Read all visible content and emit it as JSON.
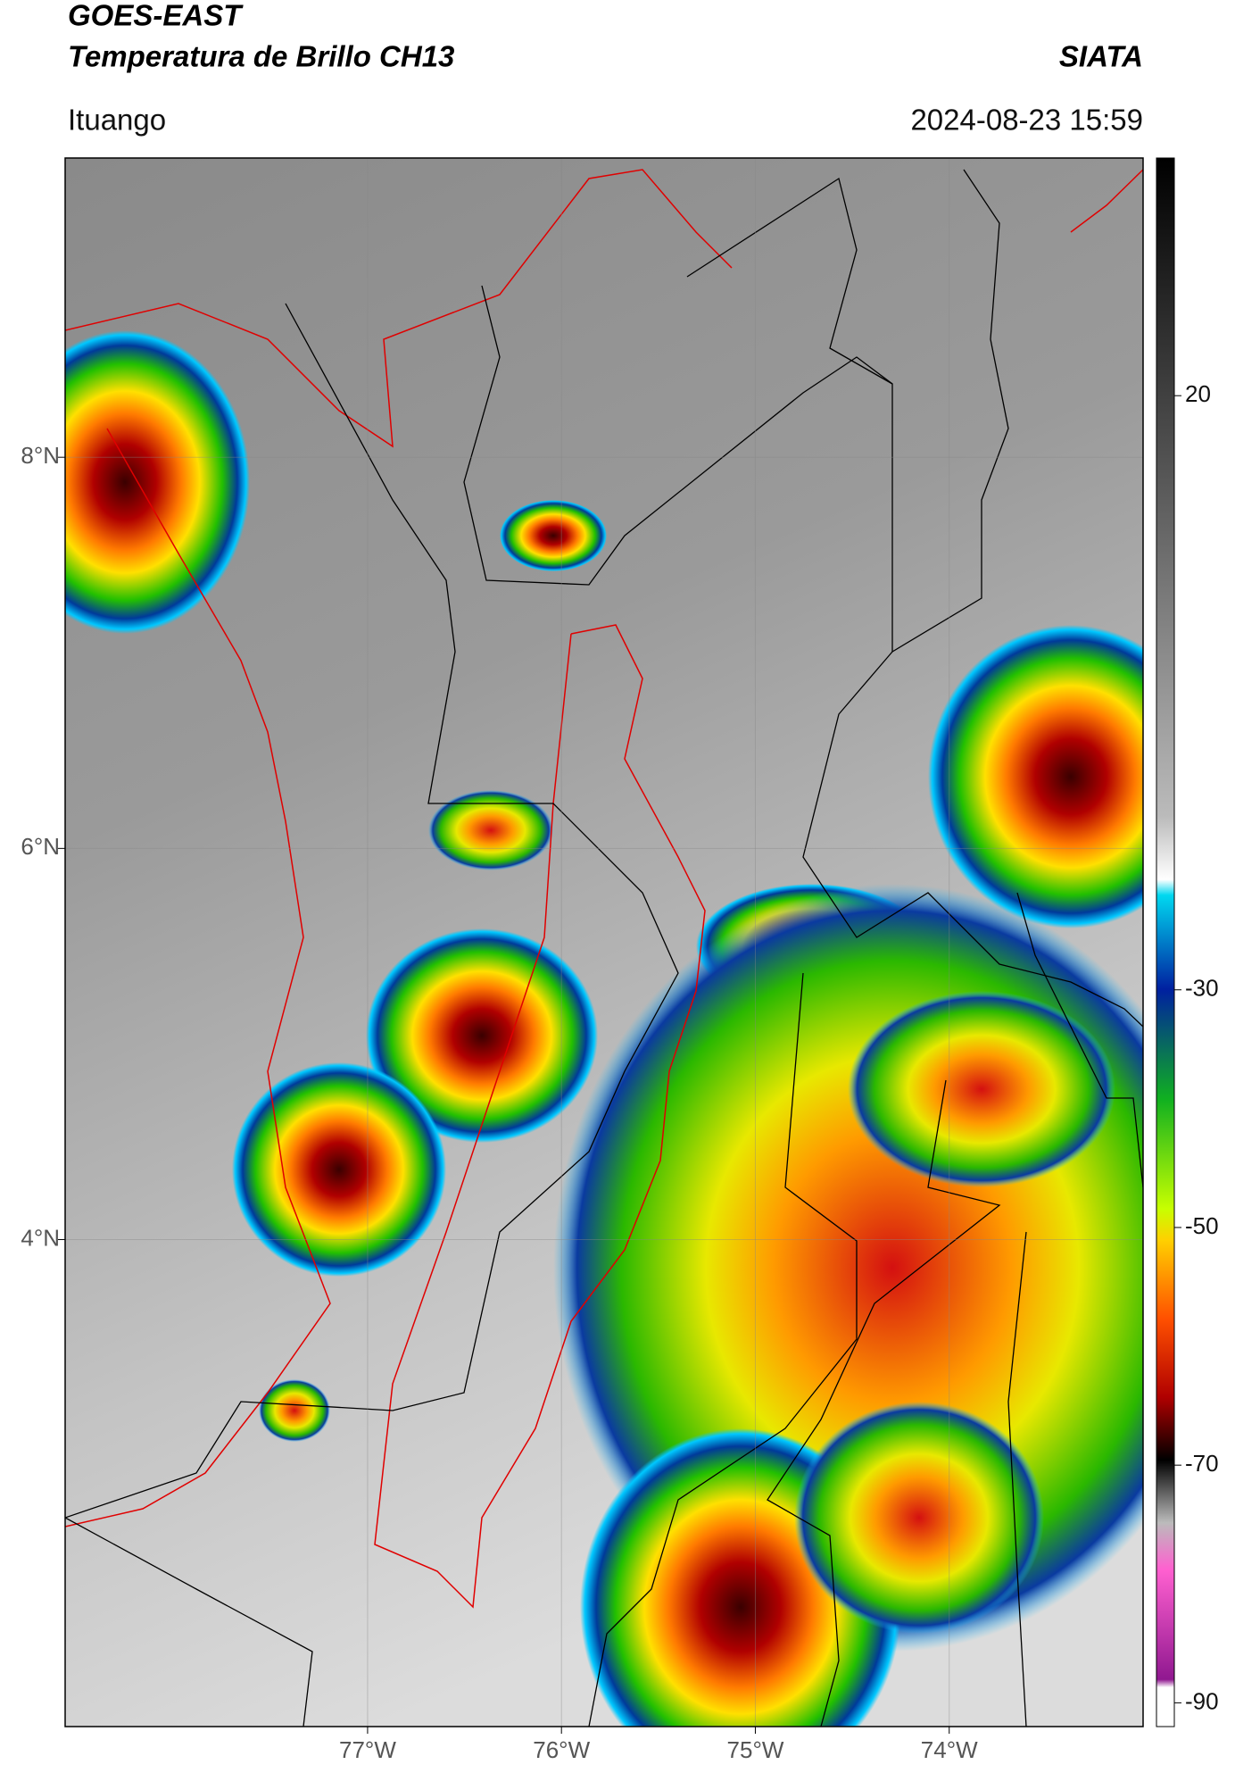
{
  "header": {
    "title": "GOES-EAST",
    "subtitle": "Temperatura de Brillo CH13",
    "agency": "SIATA",
    "location": "Ituango",
    "datetime": "2024-08-23 15:59"
  },
  "map": {
    "xlim": [
      -78.56,
      -73.0
    ],
    "ylim": [
      1.51,
      9.53
    ],
    "xticks": [
      {
        "value": -77,
        "label": "77°W"
      },
      {
        "value": -76,
        "label": "76°W"
      },
      {
        "value": -75,
        "label": "75°W"
      },
      {
        "value": -74,
        "label": "74°W"
      }
    ],
    "yticks": [
      {
        "value": 8,
        "label": "8°N"
      },
      {
        "value": 6,
        "label": "6°N"
      },
      {
        "value": 4,
        "label": "4°N"
      }
    ],
    "grid": true
  },
  "colorbar": {
    "lim": [
      -92,
      40
    ],
    "ticks": [
      20,
      -30,
      -50,
      -70,
      -90
    ]
  }
}
